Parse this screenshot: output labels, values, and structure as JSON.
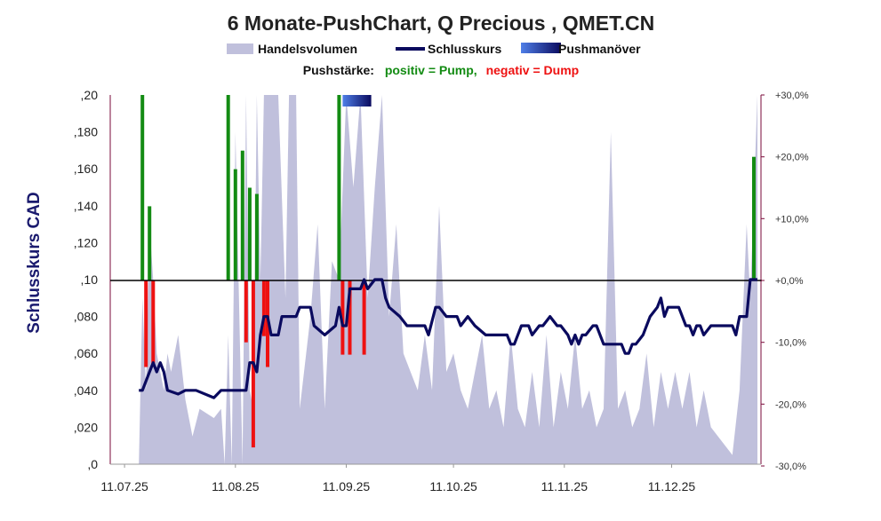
{
  "chart_data": {
    "type": "line",
    "title": "6 Monate-PushChart, Q Precious , QMET.CN",
    "legend": {
      "volume": "Handelsvolumen",
      "close": "Schlusskurs",
      "push": "Pushmanöver"
    },
    "push_caption": {
      "prefix": "Pushstärke:",
      "positive": "positiv = Pump,",
      "negative": "negativ = Dump"
    },
    "ylabel": "Schlusskurs CAD",
    "yticks": [
      ",0",
      ",020",
      ",040",
      ",060",
      ",080",
      ",10",
      ",120",
      ",140",
      ",160",
      ",180",
      ",20"
    ],
    "ylim": [
      0,
      0.2
    ],
    "y2ticks": [
      "-30,0%",
      "-20,0%",
      "-10,0%",
      "+0,0%",
      "+10,0%",
      "+20,0%",
      "+30,0%"
    ],
    "y2lim": [
      -30,
      30
    ],
    "xticks": [
      "11.07.25",
      "11.08.25",
      "11.09.25",
      "11.10.25",
      "11.11.25",
      "11.12.25"
    ],
    "x_range": [
      "07.07.25",
      "05.01.26"
    ],
    "close_series": [
      [
        "15.07.25",
        0.04
      ],
      [
        "16.07.25",
        0.04
      ],
      [
        "18.07.25",
        0.05
      ],
      [
        "19.07.25",
        0.055
      ],
      [
        "20.07.25",
        0.05
      ],
      [
        "21.07.25",
        0.055
      ],
      [
        "22.07.25",
        0.05
      ],
      [
        "23.07.25",
        0.04
      ],
      [
        "26.07.25",
        0.038
      ],
      [
        "28.07.25",
        0.04
      ],
      [
        "31.07.25",
        0.04
      ],
      [
        "05.08.25",
        0.036
      ],
      [
        "07.08.25",
        0.04
      ],
      [
        "12.08.25",
        0.04
      ],
      [
        "14.08.25",
        0.04
      ],
      [
        "15.08.25",
        0.055
      ],
      [
        "16.08.25",
        0.055
      ],
      [
        "17.08.25",
        0.05
      ],
      [
        "18.08.25",
        0.07
      ],
      [
        "19.08.25",
        0.08
      ],
      [
        "20.08.25",
        0.08
      ],
      [
        "21.08.25",
        0.07
      ],
      [
        "23.08.25",
        0.07
      ],
      [
        "24.08.25",
        0.08
      ],
      [
        "26.08.25",
        0.08
      ],
      [
        "28.08.25",
        0.08
      ],
      [
        "29.08.25",
        0.085
      ],
      [
        "01.09.25",
        0.085
      ],
      [
        "02.09.25",
        0.075
      ],
      [
        "05.09.25",
        0.07
      ],
      [
        "08.09.25",
        0.075
      ],
      [
        "09.09.25",
        0.085
      ],
      [
        "10.09.25",
        0.075
      ],
      [
        "11.09.25",
        0.075
      ],
      [
        "12.09.25",
        0.095
      ],
      [
        "13.09.25",
        0.095
      ],
      [
        "14.09.25",
        0.095
      ],
      [
        "15.09.25",
        0.095
      ],
      [
        "16.09.25",
        0.1
      ],
      [
        "17.09.25",
        0.095
      ],
      [
        "19.09.25",
        0.1
      ],
      [
        "20.09.25",
        0.1
      ],
      [
        "21.09.25",
        0.1
      ],
      [
        "22.09.25",
        0.09
      ],
      [
        "23.09.25",
        0.085
      ],
      [
        "26.09.25",
        0.08
      ],
      [
        "28.09.25",
        0.075
      ],
      [
        "01.10.25",
        0.075
      ],
      [
        "03.10.25",
        0.075
      ],
      [
        "04.10.25",
        0.07
      ],
      [
        "06.10.25",
        0.085
      ],
      [
        "07.10.25",
        0.085
      ],
      [
        "09.10.25",
        0.08
      ],
      [
        "12.10.25",
        0.08
      ],
      [
        "13.10.25",
        0.075
      ],
      [
        "15.10.25",
        0.08
      ],
      [
        "17.10.25",
        0.075
      ],
      [
        "20.10.25",
        0.07
      ],
      [
        "23.10.25",
        0.07
      ],
      [
        "26.10.25",
        0.07
      ],
      [
        "27.10.25",
        0.065
      ],
      [
        "28.10.25",
        0.065
      ],
      [
        "30.10.25",
        0.075
      ],
      [
        "01.11.25",
        0.075
      ],
      [
        "02.11.25",
        0.07
      ],
      [
        "04.11.25",
        0.075
      ],
      [
        "05.11.25",
        0.075
      ],
      [
        "07.11.25",
        0.08
      ],
      [
        "09.11.25",
        0.075
      ],
      [
        "10.11.25",
        0.075
      ],
      [
        "12.11.25",
        0.07
      ],
      [
        "13.11.25",
        0.065
      ],
      [
        "14.11.25",
        0.07
      ],
      [
        "15.11.25",
        0.065
      ],
      [
        "16.11.25",
        0.07
      ],
      [
        "17.11.25",
        0.07
      ],
      [
        "19.11.25",
        0.075
      ],
      [
        "20.11.25",
        0.075
      ],
      [
        "22.11.25",
        0.065
      ],
      [
        "23.11.25",
        0.065
      ],
      [
        "25.11.25",
        0.065
      ],
      [
        "27.11.25",
        0.065
      ],
      [
        "28.11.25",
        0.06
      ],
      [
        "29.11.25",
        0.06
      ],
      [
        "30.11.25",
        0.065
      ],
      [
        "01.12.25",
        0.065
      ],
      [
        "03.12.25",
        0.07
      ],
      [
        "05.12.25",
        0.08
      ],
      [
        "07.12.25",
        0.085
      ],
      [
        "08.12.25",
        0.09
      ],
      [
        "09.12.25",
        0.08
      ],
      [
        "10.12.25",
        0.085
      ],
      [
        "13.12.25",
        0.085
      ],
      [
        "15.12.25",
        0.075
      ],
      [
        "16.12.25",
        0.075
      ],
      [
        "17.12.25",
        0.07
      ],
      [
        "18.12.25",
        0.075
      ],
      [
        "19.12.25",
        0.075
      ],
      [
        "20.12.25",
        0.07
      ],
      [
        "22.12.25",
        0.075
      ],
      [
        "24.12.25",
        0.075
      ],
      [
        "26.12.25",
        0.075
      ],
      [
        "28.12.25",
        0.075
      ],
      [
        "29.12.25",
        0.07
      ],
      [
        "30.12.25",
        0.08
      ],
      [
        "01.01.26",
        0.08
      ],
      [
        "02.01.26",
        0.1
      ],
      [
        "04.01.26",
        0.1
      ]
    ],
    "volume_series": [
      [
        "15.07.25",
        0.0
      ],
      [
        "16.07.25",
        0.09
      ],
      [
        "17.07.25",
        0.04
      ],
      [
        "18.07.25",
        0.13
      ],
      [
        "19.07.25",
        0.1
      ],
      [
        "20.07.25",
        0.06
      ],
      [
        "22.07.25",
        0.04
      ],
      [
        "23.07.25",
        0.06
      ],
      [
        "24.07.25",
        0.05
      ],
      [
        "26.07.25",
        0.07
      ],
      [
        "28.07.25",
        0.035
      ],
      [
        "30.07.25",
        0.015
      ],
      [
        "01.08.25",
        0.03
      ],
      [
        "05.08.25",
        0.025
      ],
      [
        "07.08.25",
        0.03
      ],
      [
        "08.08.25",
        0.0
      ],
      [
        "09.08.25",
        0.07
      ],
      [
        "10.08.25",
        0.0
      ],
      [
        "11.08.25",
        0.18
      ],
      [
        "13.08.25",
        0.0
      ],
      [
        "14.08.25",
        0.2
      ],
      [
        "15.08.25",
        0.04
      ],
      [
        "16.08.25",
        0.03
      ],
      [
        "17.08.25",
        0.2
      ],
      [
        "18.08.25",
        0.1
      ],
      [
        "19.08.25",
        0.2
      ],
      [
        "20.08.25",
        0.2
      ],
      [
        "23.08.25",
        0.2
      ],
      [
        "25.08.25",
        0.09
      ],
      [
        "26.08.25",
        0.2
      ],
      [
        "28.08.25",
        0.2
      ],
      [
        "29.08.25",
        0.03
      ],
      [
        "01.09.25",
        0.08
      ],
      [
        "03.09.25",
        0.13
      ],
      [
        "05.09.25",
        0.03
      ],
      [
        "07.09.25",
        0.11
      ],
      [
        "09.09.25",
        0.1
      ],
      [
        "11.09.25",
        0.2
      ],
      [
        "13.09.25",
        0.15
      ],
      [
        "15.09.25",
        0.2
      ],
      [
        "17.09.25",
        0.09
      ],
      [
        "19.09.25",
        0.15
      ],
      [
        "21.09.25",
        0.2
      ],
      [
        "23.09.25",
        0.08
      ],
      [
        "25.09.25",
        0.13
      ],
      [
        "27.09.25",
        0.06
      ],
      [
        "29.09.25",
        0.05
      ],
      [
        "01.10.25",
        0.04
      ],
      [
        "03.10.25",
        0.07
      ],
      [
        "05.10.25",
        0.04
      ],
      [
        "07.10.25",
        0.14
      ],
      [
        "09.10.25",
        0.05
      ],
      [
        "11.10.25",
        0.06
      ],
      [
        "13.10.25",
        0.04
      ],
      [
        "15.10.25",
        0.03
      ],
      [
        "17.10.25",
        0.05
      ],
      [
        "19.10.25",
        0.07
      ],
      [
        "21.10.25",
        0.03
      ],
      [
        "23.10.25",
        0.04
      ],
      [
        "25.10.25",
        0.02
      ],
      [
        "27.10.25",
        0.07
      ],
      [
        "29.10.25",
        0.03
      ],
      [
        "31.10.25",
        0.02
      ],
      [
        "02.11.25",
        0.05
      ],
      [
        "04.11.25",
        0.02
      ],
      [
        "06.11.25",
        0.07
      ],
      [
        "08.11.25",
        0.02
      ],
      [
        "10.11.25",
        0.05
      ],
      [
        "12.11.25",
        0.03
      ],
      [
        "14.11.25",
        0.07
      ],
      [
        "16.11.25",
        0.03
      ],
      [
        "18.11.25",
        0.04
      ],
      [
        "20.11.25",
        0.02
      ],
      [
        "22.11.25",
        0.03
      ],
      [
        "24.11.25",
        0.18
      ],
      [
        "26.11.25",
        0.03
      ],
      [
        "28.11.25",
        0.04
      ],
      [
        "30.11.25",
        0.02
      ],
      [
        "02.12.25",
        0.03
      ],
      [
        "04.12.25",
        0.06
      ],
      [
        "06.12.25",
        0.02
      ],
      [
        "08.12.25",
        0.05
      ],
      [
        "10.12.25",
        0.03
      ],
      [
        "12.12.25",
        0.05
      ],
      [
        "14.12.25",
        0.03
      ],
      [
        "16.12.25",
        0.05
      ],
      [
        "18.12.25",
        0.02
      ],
      [
        "20.12.25",
        0.04
      ],
      [
        "22.12.25",
        0.02
      ],
      [
        "24.12.25",
        0.015
      ],
      [
        "26.12.25",
        0.01
      ],
      [
        "28.12.25",
        0.005
      ],
      [
        "30.12.25",
        0.04
      ],
      [
        "01.01.26",
        0.13
      ],
      [
        "02.01.26",
        0.09
      ],
      [
        "04.01.26",
        0.2
      ]
    ],
    "push_bars": [
      [
        "16.07.25",
        30
      ],
      [
        "17.07.25",
        -14
      ],
      [
        "18.07.25",
        12
      ],
      [
        "19.07.25",
        -14
      ],
      [
        "09.08.25",
        30
      ],
      [
        "11.08.25",
        18
      ],
      [
        "13.08.25",
        21
      ],
      [
        "14.08.25",
        -10
      ],
      [
        "15.08.25",
        15
      ],
      [
        "16.08.25",
        -27
      ],
      [
        "17.08.25",
        14
      ],
      [
        "19.08.25",
        -9
      ],
      [
        "20.08.25",
        -14
      ],
      [
        "09.09.25",
        30
      ],
      [
        "10.09.25",
        -12
      ],
      [
        "12.09.25",
        -12
      ],
      [
        "16.09.25",
        -12
      ],
      [
        "03.01.26",
        20
      ]
    ],
    "push_marker": [
      "10.09.25",
      "18.09.25"
    ],
    "colors": {
      "volume": "#c0c0dc",
      "close": "#0a0a5e",
      "positive": "#138b13",
      "negative": "#ee1111",
      "push_dark": "#0a0a5e",
      "push_light": "#4f7fe8",
      "right_axis": "#7a0a3a"
    }
  }
}
